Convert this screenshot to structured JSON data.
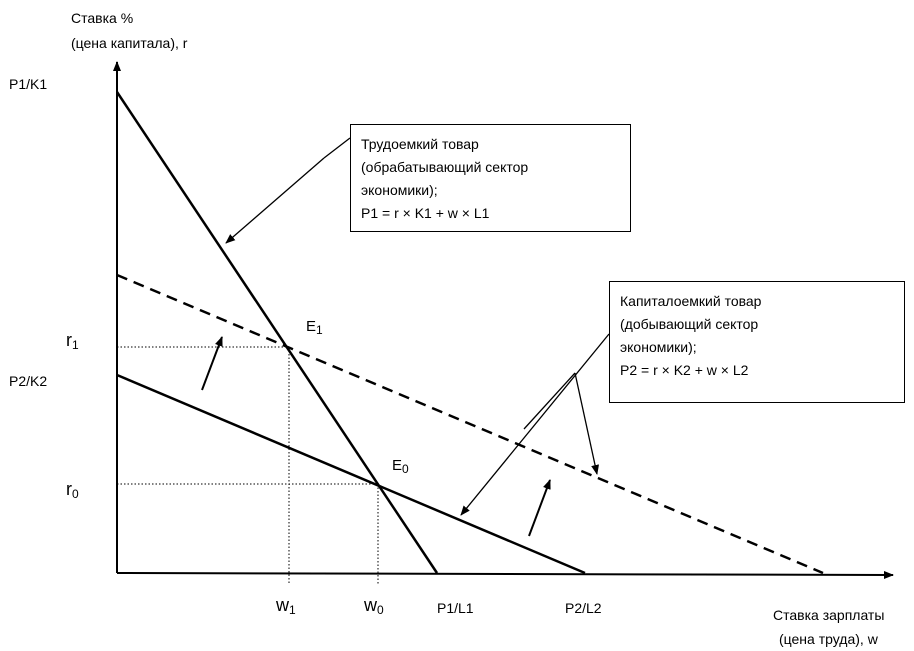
{
  "axes": {
    "y_title_line1": "Ставка %",
    "y_title_line2": "(цена капитала), r",
    "x_title_line1": "Ставка зарплаты",
    "x_title_line2": "(цена труда), w"
  },
  "y_ticks": {
    "p1_k1": "P1/K1",
    "p2_k2": "P2/K2",
    "r1_main": "r",
    "r1_sub": "1",
    "r0_main": "r",
    "r0_sub": "0"
  },
  "x_ticks": {
    "w1_main": "w",
    "w1_sub": "1",
    "w0_main": "w",
    "w0_sub": "0",
    "p1_l1": "P1/L1",
    "p2_l2": "P2/L2"
  },
  "points": {
    "e1_main": "E",
    "e1_sub": "1",
    "e0_main": "E",
    "e0_sub": "0"
  },
  "box_labor": {
    "line1": "Трудоемкий товар",
    "line2": "(обрабатывающий сектор",
    "line3": "экономики);",
    "line4": "P1 = r × K1 + w × L1"
  },
  "box_capital": {
    "line1": "Капиталоемкий товар",
    "line2": "(добывающий сектор",
    "line3": "экономики);",
    "line4": "P2 = r × K2 + w × L2"
  },
  "colors": {
    "ink": "#000000",
    "background": "#ffffff"
  }
}
